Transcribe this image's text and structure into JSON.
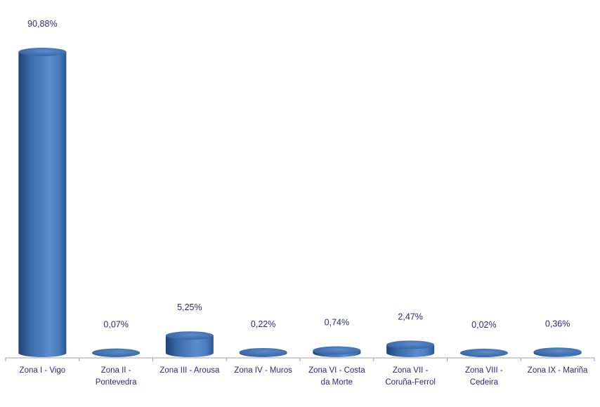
{
  "chart_data": {
    "type": "bar",
    "style": "3d-cylinder",
    "categories": [
      "Zona I - Vigo",
      "Zona II - Pontevedra",
      "Zona III - Arousa",
      "Zona IV - Muros",
      "Zona VI - Costa da Morte",
      "Zona VII - Coruña-Ferrol",
      "Zona VIII - Cedeira",
      "Zona IX - Mariña"
    ],
    "category_lines": [
      [
        "Zona I - Vigo"
      ],
      [
        "Zona II -",
        "Pontevedra"
      ],
      [
        "Zona III - Arousa"
      ],
      [
        "Zona IV - Muros"
      ],
      [
        "Zona VI - Costa",
        "da Morte"
      ],
      [
        "Zona VII -",
        "Coruña-Ferrol"
      ],
      [
        "Zona VIII -",
        "Cedeira"
      ],
      [
        "Zona IX - Mariña"
      ]
    ],
    "values": [
      90.88,
      0.07,
      5.25,
      0.22,
      0.74,
      2.47,
      0.02,
      0.36
    ],
    "data_labels": [
      "90,88%",
      "0,07%",
      "5,25%",
      "0,22%",
      "0,74%",
      "2,47%",
      "0,02%",
      "0,36%"
    ],
    "title": "",
    "xlabel": "",
    "ylabel": "",
    "ylim": [
      0,
      100
    ],
    "grid": false,
    "legend": "none",
    "colors": {
      "bar": "#4a7cc0",
      "bar_dark": "#2b5590",
      "text": "#2b2b7a",
      "axis": "#a0a0a0"
    }
  }
}
